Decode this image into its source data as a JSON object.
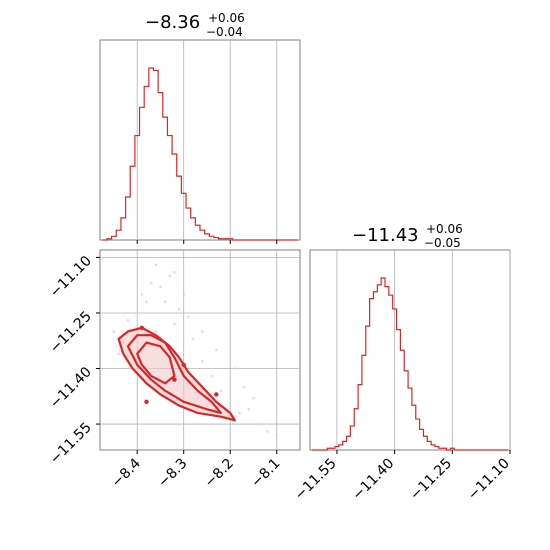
{
  "colors": {
    "series": "#d62728",
    "fill": "#f4c9ca",
    "grid": "#b0b0b0",
    "frame": "#808080"
  },
  "chart_data": [
    {
      "type": "histogram",
      "panel": "top-left",
      "title": {
        "value": "−8.36",
        "plus": "+0.06",
        "minus": "−0.04"
      },
      "xlim": [
        -8.48,
        -8.05
      ],
      "grid": true,
      "xticks": [
        -8.4,
        -8.3,
        -8.2,
        -8.1
      ],
      "x": [
        -8.47,
        -8.46,
        -8.45,
        -8.44,
        -8.43,
        -8.42,
        -8.41,
        -8.4,
        -8.39,
        -8.38,
        -8.37,
        -8.36,
        -8.35,
        -8.34,
        -8.33,
        -8.32,
        -8.31,
        -8.3,
        -8.29,
        -8.28,
        -8.27,
        -8.26,
        -8.25,
        -8.24,
        -8.23,
        -8.22,
        -8.21,
        -8.2,
        -8.19,
        -8.18,
        -8.17,
        -8.16,
        -8.15,
        -8.14,
        -8.13,
        -8.12,
        -8.11,
        -8.1,
        -8.09,
        -8.08,
        -8.07,
        -8.06
      ],
      "counts": [
        0,
        1,
        3,
        8,
        18,
        35,
        60,
        85,
        108,
        125,
        140,
        138,
        120,
        100,
        85,
        70,
        52,
        38,
        26,
        18,
        12,
        8,
        5,
        3,
        2,
        1,
        1,
        1,
        0,
        0,
        0,
        0,
        0,
        0,
        0,
        0,
        0,
        0,
        0,
        0,
        0,
        0
      ]
    },
    {
      "type": "histogram",
      "panel": "bottom-right",
      "title": {
        "value": "−11.43",
        "plus": "+0.06",
        "minus": "−0.05"
      },
      "xlim": [
        -11.62,
        -11.1
      ],
      "grid": true,
      "xticks": [
        -11.55,
        -11.4,
        -11.25,
        -11.1
      ],
      "xticklabels": [
        "−11.55",
        "−11.40",
        "−11.25",
        "−11.10"
      ],
      "x": [
        -11.61,
        -11.6,
        -11.59,
        -11.58,
        -11.57,
        -11.56,
        -11.55,
        -11.54,
        -11.53,
        -11.52,
        -11.51,
        -11.5,
        -11.49,
        -11.48,
        -11.47,
        -11.46,
        -11.45,
        -11.44,
        -11.43,
        -11.42,
        -11.41,
        -11.4,
        -11.39,
        -11.38,
        -11.37,
        -11.36,
        -11.35,
        -11.34,
        -11.33,
        -11.32,
        -11.31,
        -11.3,
        -11.29,
        -11.28,
        -11.27,
        -11.26,
        -11.25,
        -11.24,
        -11.23,
        -11.22,
        -11.21,
        -11.2,
        -11.19,
        -11.18,
        -11.17,
        -11.16,
        -11.15,
        -11.14,
        -11.13,
        -11.12,
        -11.11
      ],
      "counts": [
        0,
        0,
        0,
        0,
        1,
        1,
        2,
        3,
        5,
        8,
        14,
        24,
        38,
        55,
        72,
        88,
        92,
        96,
        100,
        95,
        90,
        82,
        70,
        58,
        46,
        36,
        26,
        18,
        12,
        8,
        5,
        3,
        2,
        1,
        1,
        0,
        1,
        0,
        0,
        0,
        0,
        0,
        0,
        0,
        0,
        0,
        0,
        0,
        0,
        0,
        0
      ]
    },
    {
      "type": "contour-scatter",
      "panel": "bottom-left",
      "xlim": [
        -8.48,
        -8.05
      ],
      "ylim": [
        -11.62,
        -11.08
      ],
      "grid": true,
      "xticks": [
        -8.4,
        -8.3,
        -8.2,
        -8.1
      ],
      "xticklabels": [
        "−8.4",
        "−8.3",
        "−8.2",
        "−8.1"
      ],
      "yticks": [
        -11.1,
        -11.25,
        -11.4,
        -11.55
      ],
      "yticklabels": [
        "−11.10",
        "−11.25",
        "−11.40",
        "−11.55"
      ],
      "contours": [
        {
          "level": "outer",
          "x": [
            -8.44,
            -8.42,
            -8.39,
            -8.36,
            -8.33,
            -8.31,
            -8.29,
            -8.26,
            -8.23,
            -8.2,
            -8.19,
            -8.22,
            -8.27,
            -8.31,
            -8.35,
            -8.38,
            -8.41,
            -8.43,
            -8.44
          ],
          "y": [
            -11.32,
            -11.3,
            -11.29,
            -11.31,
            -11.34,
            -11.37,
            -11.41,
            -11.45,
            -11.49,
            -11.52,
            -11.54,
            -11.53,
            -11.52,
            -11.5,
            -11.47,
            -11.44,
            -11.4,
            -11.36,
            -11.32
          ]
        },
        {
          "level": "middle",
          "x": [
            -8.42,
            -8.4,
            -8.37,
            -8.34,
            -8.32,
            -8.3,
            -8.27,
            -8.24,
            -8.22,
            -8.25,
            -8.3,
            -8.34,
            -8.37,
            -8.4,
            -8.42
          ],
          "y": [
            -11.34,
            -11.31,
            -11.31,
            -11.33,
            -11.37,
            -11.42,
            -11.46,
            -11.49,
            -11.52,
            -11.51,
            -11.49,
            -11.46,
            -11.43,
            -11.39,
            -11.34
          ]
        },
        {
          "level": "inner",
          "x": [
            -8.4,
            -8.38,
            -8.35,
            -8.33,
            -8.32,
            -8.34,
            -8.37,
            -8.39,
            -8.4
          ],
          "y": [
            -11.36,
            -11.33,
            -11.34,
            -11.37,
            -11.42,
            -11.44,
            -11.42,
            -11.39,
            -11.36
          ]
        }
      ],
      "points": [
        [
          -8.42,
          -11.27
        ],
        [
          -8.4,
          -11.25
        ],
        [
          -8.38,
          -11.22
        ],
        [
          -8.35,
          -11.18
        ],
        [
          -8.33,
          -11.15
        ],
        [
          -8.3,
          -11.2
        ],
        [
          -8.45,
          -11.3
        ],
        [
          -8.41,
          -11.35
        ],
        [
          -8.36,
          -11.3
        ],
        [
          -8.32,
          -11.28
        ],
        [
          -8.28,
          -11.32
        ],
        [
          -8.26,
          -11.38
        ],
        [
          -8.24,
          -11.42
        ],
        [
          -8.22,
          -11.46
        ],
        [
          -8.2,
          -11.5
        ],
        [
          -8.18,
          -11.52
        ],
        [
          -8.16,
          -11.51
        ],
        [
          -8.14,
          -11.55
        ],
        [
          -8.12,
          -11.57
        ],
        [
          -8.1,
          -11.58
        ],
        [
          -8.38,
          -11.4
        ],
        [
          -8.34,
          -11.45
        ],
        [
          -8.3,
          -11.47
        ],
        [
          -8.27,
          -11.48
        ],
        [
          -8.25,
          -11.5
        ],
        [
          -8.21,
          -11.53
        ],
        [
          -8.39,
          -11.2
        ],
        [
          -8.37,
          -11.17
        ],
        [
          -8.31,
          -11.24
        ],
        [
          -8.29,
          -11.26
        ],
        [
          -8.43,
          -11.33
        ],
        [
          -8.44,
          -11.36
        ],
        [
          -8.34,
          -11.22
        ],
        [
          -8.26,
          -11.3
        ],
        [
          -8.23,
          -11.35
        ],
        [
          -8.19,
          -11.4
        ],
        [
          -8.17,
          -11.45
        ],
        [
          -8.15,
          -11.48
        ],
        [
          -8.36,
          -11.12
        ],
        [
          -8.32,
          -11.14
        ]
      ],
      "markers": [
        [
          -8.39,
          -11.29
        ],
        [
          -8.3,
          -11.39
        ],
        [
          -8.32,
          -11.43
        ],
        [
          -8.23,
          -11.47
        ],
        [
          -8.38,
          -11.49
        ]
      ]
    }
  ]
}
